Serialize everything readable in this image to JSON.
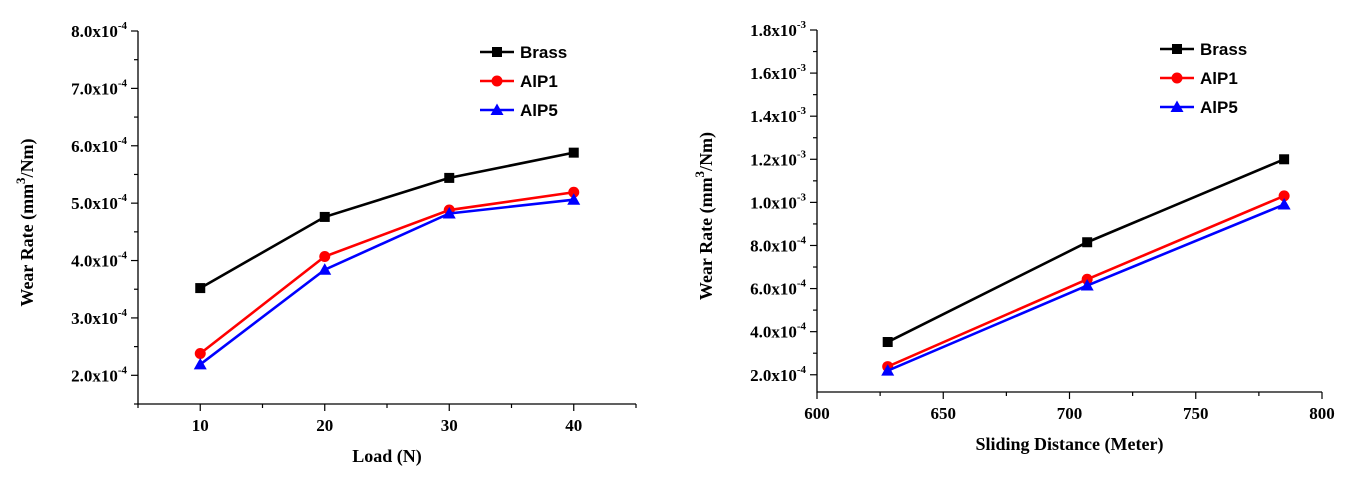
{
  "chart_data": [
    {
      "type": "line",
      "xlabel": "Load (N)",
      "ylabel": "Wear Rate (mm³/Nm)",
      "ylabel_parts": {
        "pre": "Wear Rate (mm",
        "sup": "3",
        "post": "/Nm)"
      },
      "xlim": [
        5,
        45
      ],
      "ylim": [
        0.00015,
        0.0008
      ],
      "x_ticks": [
        10,
        20,
        30,
        40
      ],
      "x_tick_labels": [
        "10",
        "20",
        "30",
        "40"
      ],
      "y_ticks": [
        {
          "value": 0.0002,
          "mant": "2.0x10",
          "exp": "-4"
        },
        {
          "value": 0.0003,
          "mant": "3.0x10",
          "exp": "-4"
        },
        {
          "value": 0.0004,
          "mant": "4.0x10",
          "exp": "-4"
        },
        {
          "value": 0.0005,
          "mant": "5.0x10",
          "exp": "-4"
        },
        {
          "value": 0.0006,
          "mant": "6.0x10",
          "exp": "-4"
        },
        {
          "value": 0.0007,
          "mant": "7.0x10",
          "exp": "-4"
        },
        {
          "value": 0.0008,
          "mant": "8.0x10",
          "exp": "-4"
        }
      ],
      "x": [
        10,
        20,
        30,
        40
      ],
      "legend_position": "top-right",
      "series": [
        {
          "name": "Brass",
          "color": "#000000",
          "marker": "square",
          "values": [
            0.000352,
            0.000476,
            0.000544,
            0.000588
          ]
        },
        {
          "name": "AlP1",
          "color": "#ff0000",
          "marker": "circle",
          "values": [
            0.000238,
            0.000407,
            0.000488,
            0.000519
          ]
        },
        {
          "name": "AlP5",
          "color": "#0000ff",
          "marker": "triangle",
          "values": [
            0.000219,
            0.000384,
            0.000482,
            0.000506
          ]
        }
      ]
    },
    {
      "type": "line",
      "xlabel": "Sliding Distance (Meter)",
      "ylabel": "Wear Rate (mm³/Nm)",
      "ylabel_parts": {
        "pre": "Wear Rate (mm",
        "sup": "3",
        "post": "/Nm)"
      },
      "xlim": [
        600,
        800
      ],
      "ylim": [
        0.00012,
        0.0018
      ],
      "x_ticks": [
        600,
        650,
        700,
        750,
        800
      ],
      "x_tick_labels": [
        "600",
        "650",
        "700",
        "750",
        "800"
      ],
      "y_ticks": [
        {
          "value": 0.0002,
          "mant": "2.0x10",
          "exp": "-4"
        },
        {
          "value": 0.0004,
          "mant": "4.0x10",
          "exp": "-4"
        },
        {
          "value": 0.0006,
          "mant": "6.0x10",
          "exp": "-4"
        },
        {
          "value": 0.0008,
          "mant": "8.0x10",
          "exp": "-4"
        },
        {
          "value": 0.001,
          "mant": "1.0x10",
          "exp": "-3"
        },
        {
          "value": 0.0012,
          "mant": "1.2x10",
          "exp": "-3"
        },
        {
          "value": 0.0014,
          "mant": "1.4x10",
          "exp": "-3"
        },
        {
          "value": 0.0016,
          "mant": "1.6x10",
          "exp": "-3"
        },
        {
          "value": 0.0018,
          "mant": "1.8x10",
          "exp": "-3"
        }
      ],
      "x": [
        628,
        707,
        785
      ],
      "legend_position": "top-right",
      "series": [
        {
          "name": "Brass",
          "color": "#000000",
          "marker": "square",
          "values": [
            0.000352,
            0.000815,
            0.0012
          ]
        },
        {
          "name": "AlP1",
          "color": "#ff0000",
          "marker": "circle",
          "values": [
            0.000238,
            0.000643,
            0.00103
          ]
        },
        {
          "name": "AlP5",
          "color": "#0000ff",
          "marker": "triangle",
          "values": [
            0.000219,
            0.000614,
            0.00099
          ]
        }
      ]
    }
  ]
}
